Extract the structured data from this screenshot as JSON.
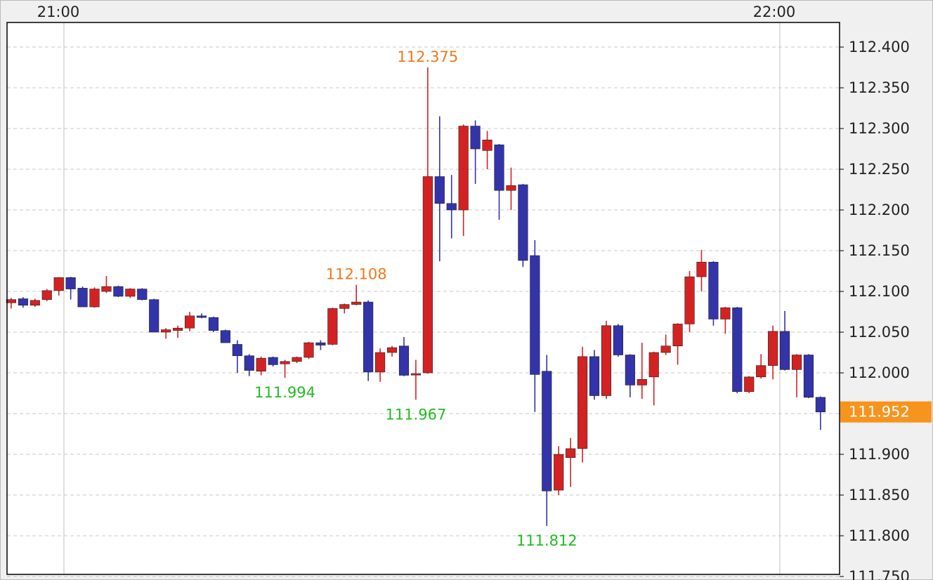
{
  "chart_data": {
    "type": "candlestick",
    "categories": [
      null,
      null,
      null,
      null,
      null,
      null,
      null,
      null,
      null,
      null,
      null,
      null,
      null,
      null,
      null,
      null,
      null,
      null,
      null,
      null,
      null,
      null,
      null,
      null,
      null,
      null,
      null,
      null,
      null,
      null,
      null,
      null,
      null,
      null,
      null,
      null,
      null,
      null,
      null,
      null,
      null,
      null,
      null,
      null,
      null,
      null,
      null,
      null,
      null,
      null,
      null,
      null,
      null,
      null,
      null,
      null,
      null,
      null,
      null,
      null,
      null,
      null,
      null,
      null,
      null,
      null,
      null,
      null,
      null
    ],
    "open": [
      112.086,
      112.091,
      112.083,
      112.09,
      112.101,
      112.117,
      112.104,
      112.081,
      112.1,
      112.106,
      112.094,
      112.103,
      112.09,
      112.05,
      112.052,
      112.055,
      112.07,
      112.068,
      112.052,
      112.035,
      112.021,
      112.002,
      112.019,
      112.011,
      112.014,
      112.019,
      112.037,
      112.035,
      112.079,
      112.084,
      112.087,
      112.001,
      112.025,
      112.033,
      111.998,
      112.0,
      112.241,
      112.208,
      112.2,
      112.303,
      112.273,
      112.28,
      112.224,
      112.231,
      112.144,
      112.002,
      111.856,
      111.896,
      111.907,
      112.02,
      111.972,
      112.058,
      112.022,
      111.985,
      111.995,
      112.025,
      112.033,
      112.06,
      112.118,
      112.136,
      112.066,
      112.08,
      111.977,
      111.995,
      112.009,
      112.051,
      112.004,
      112.022,
      111.97
    ],
    "high": [
      112.092,
      112.093,
      112.091,
      112.103,
      112.117,
      112.118,
      112.106,
      112.105,
      112.119,
      112.107,
      112.104,
      112.104,
      112.091,
      112.055,
      112.058,
      112.075,
      112.073,
      112.069,
      112.053,
      112.04,
      112.023,
      112.02,
      112.02,
      112.016,
      112.02,
      112.038,
      112.04,
      112.08,
      112.085,
      112.108,
      112.089,
      112.03,
      112.033,
      112.044,
      112.016,
      112.375,
      112.315,
      112.243,
      112.305,
      112.31,
      112.297,
      112.281,
      112.252,
      112.232,
      112.163,
      112.022,
      111.91,
      111.92,
      112.032,
      112.028,
      112.064,
      112.06,
      112.023,
      112.037,
      112.026,
      112.047,
      112.061,
      112.125,
      112.151,
      112.137,
      112.081,
      112.081,
      111.996,
      112.023,
      112.058,
      112.076,
      112.023,
      112.023,
      111.971
    ],
    "low": [
      112.079,
      112.08,
      112.081,
      112.088,
      112.095,
      112.09,
      112.081,
      112.08,
      112.098,
      112.093,
      112.092,
      112.089,
      112.05,
      112.042,
      112.043,
      112.051,
      112.067,
      112.05,
      112.037,
      112.0,
      111.996,
      111.997,
      112.008,
      111.994,
      112.012,
      112.017,
      112.028,
      112.034,
      112.073,
      112.083,
      111.99,
      111.989,
      112.02,
      111.996,
      111.967,
      111.999,
      112.137,
      112.165,
      112.168,
      112.232,
      112.25,
      112.188,
      112.2,
      112.13,
      111.952,
      111.812,
      111.85,
      111.86,
      111.89,
      111.967,
      111.968,
      112.02,
      111.97,
      111.968,
      111.96,
      112.022,
      112.01,
      112.05,
      112.1,
      112.058,
      112.048,
      111.975,
      111.975,
      111.993,
      111.992,
      112.003,
      111.97,
      111.969,
      111.93
    ],
    "close": [
      112.09,
      112.083,
      112.089,
      112.101,
      112.117,
      112.103,
      112.081,
      112.103,
      112.106,
      112.094,
      112.103,
      112.09,
      112.05,
      112.053,
      112.055,
      112.07,
      112.068,
      112.052,
      112.037,
      112.021,
      112.003,
      112.018,
      112.01,
      112.014,
      112.019,
      112.037,
      112.034,
      112.079,
      112.084,
      112.087,
      112.001,
      112.025,
      112.031,
      111.997,
      111.999,
      112.241,
      112.208,
      112.2,
      112.303,
      112.275,
      112.286,
      112.224,
      112.23,
      112.138,
      111.998,
      111.855,
      111.9,
      111.907,
      112.02,
      111.972,
      112.058,
      112.022,
      111.985,
      111.992,
      112.025,
      112.033,
      112.06,
      112.118,
      112.136,
      112.066,
      112.08,
      111.977,
      111.995,
      112.009,
      112.051,
      112.004,
      112.022,
      111.97,
      111.952
    ],
    "up_color": "#d42222",
    "down_color": "#3333aa",
    "xlim": [
      -0.35,
      69.6
    ],
    "xticks": [
      {
        "value": 4.43,
        "label": "21:00"
      },
      {
        "value": 64.58,
        "label": "22:00"
      }
    ],
    "ylim": [
      111.7526,
      112.4302
    ],
    "yticks": [
      {
        "value": 112.4,
        "label": "112.400"
      },
      {
        "value": 112.35,
        "label": "112.350"
      },
      {
        "value": 112.3,
        "label": "112.300"
      },
      {
        "value": 112.25,
        "label": "112.250"
      },
      {
        "value": 112.2,
        "label": "112.200"
      },
      {
        "value": 112.15,
        "label": "112.150"
      },
      {
        "value": 112.1,
        "label": "112.100"
      },
      {
        "value": 112.05,
        "label": "112.050"
      },
      {
        "value": 112.0,
        "label": "112.000"
      },
      {
        "value": 111.95,
        "label": "111.950"
      },
      {
        "value": 111.9,
        "label": "111.900"
      },
      {
        "value": 111.85,
        "label": "111.850"
      },
      {
        "value": 111.8,
        "label": "111.800"
      },
      {
        "value": 111.75,
        "label": "111.750"
      }
    ],
    "grid": true,
    "annotations": [
      {
        "candle": 35,
        "value": 112.375,
        "kind": "high",
        "color": "#f07818"
      },
      {
        "candle": 29,
        "value": 112.108,
        "kind": "high",
        "color": "#f07818"
      },
      {
        "candle": 23,
        "value": 111.994,
        "kind": "low",
        "color": "#22bb22"
      },
      {
        "candle": 34,
        "value": 111.967,
        "kind": "low",
        "color": "#22bb22"
      },
      {
        "candle": 45,
        "value": 111.812,
        "kind": "low",
        "color": "#22bb22"
      }
    ],
    "last_price": {
      "value": 111.952,
      "color": "#f7941d"
    }
  }
}
